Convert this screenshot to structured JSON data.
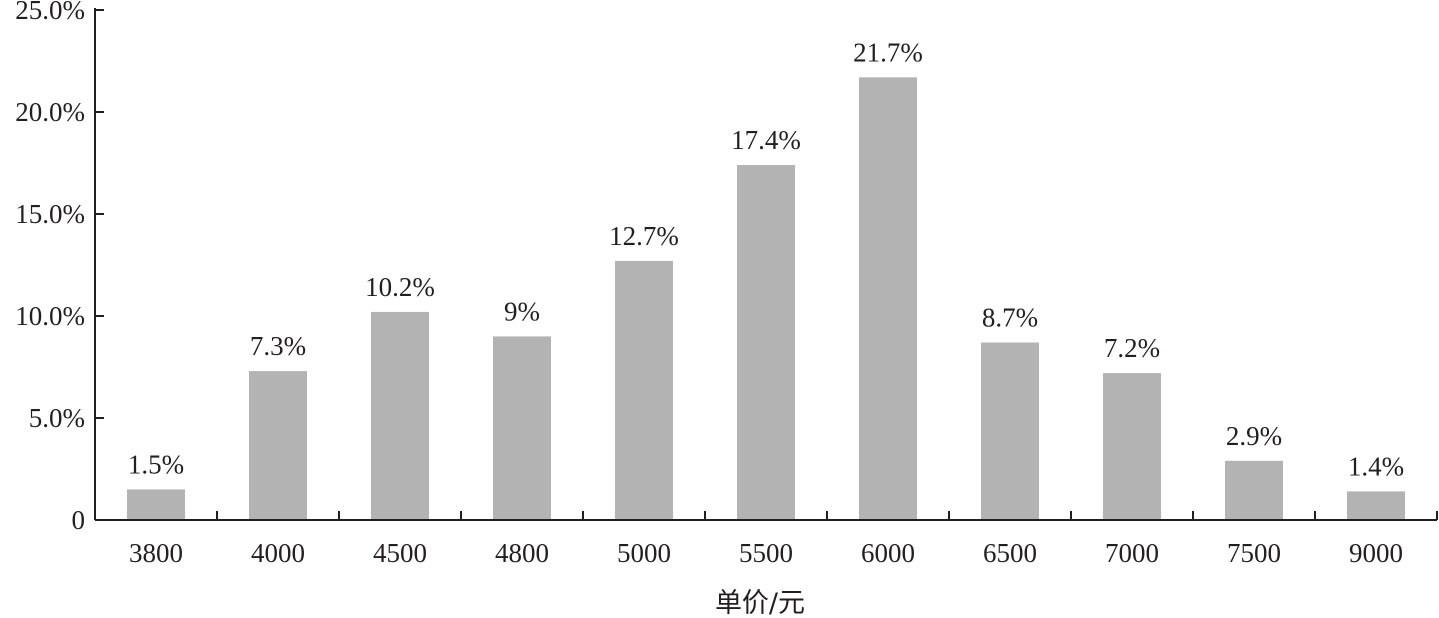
{
  "chart_data": {
    "type": "bar",
    "title": "",
    "xlabel": "单价/元",
    "ylabel": "",
    "categories": [
      "3800",
      "4000",
      "4500",
      "4800",
      "5000",
      "5500",
      "6000",
      "6500",
      "7000",
      "7500",
      "9000"
    ],
    "values": [
      1.5,
      7.3,
      10.2,
      9,
      12.7,
      17.4,
      21.7,
      8.7,
      7.2,
      2.9,
      1.4
    ],
    "data_labels": [
      "1.5%",
      "7.3%",
      "10.2%",
      "9%",
      "12.7%",
      "17.4%",
      "21.7%",
      "8.7%",
      "7.2%",
      "2.9%",
      "1.4%"
    ],
    "ylim": [
      0,
      25
    ],
    "yticks": [
      0,
      5,
      10,
      15,
      20,
      25
    ],
    "ytick_labels": [
      "0",
      "5.0%",
      "10.0%",
      "15.0%",
      "20.0%",
      "25.0%"
    ],
    "grid": false,
    "legend": "none",
    "bar_color": "#b3b3b3",
    "axis_color": "#231f20"
  }
}
